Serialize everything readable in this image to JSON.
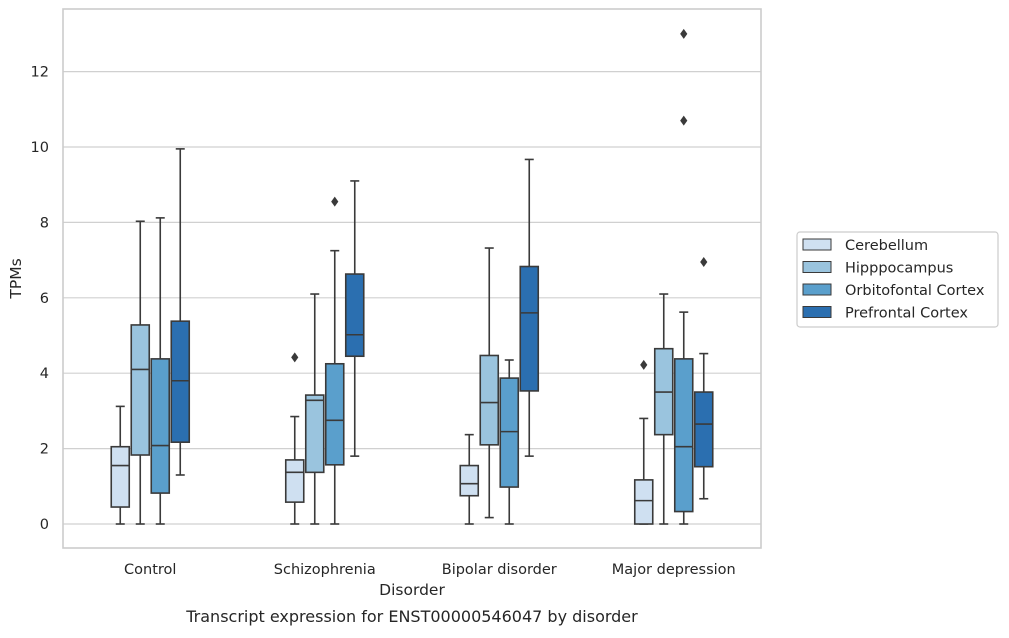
{
  "chart_data": {
    "type": "boxplot",
    "xlabel": "Disorder",
    "ylabel": "TPMs",
    "caption": "Transcript expression for ENST00000546047 by disorder",
    "ylim": [
      -0.6,
      13.6
    ],
    "yticks": [
      0,
      2,
      4,
      6,
      8,
      10,
      12
    ],
    "grid": "horizontal",
    "legend_position": "right",
    "categories": [
      "Control",
      "Schizophrenia",
      "Bipolar disorder",
      "Major depression"
    ],
    "series": [
      {
        "name": "Cerebellum",
        "color": "#cfe0f1",
        "boxes": [
          {
            "min": 0,
            "q1": 0.45,
            "median": 1.55,
            "q3": 2.05,
            "max": 3.12,
            "outliers": []
          },
          {
            "min": 0,
            "q1": 0.58,
            "median": 1.37,
            "q3": 1.7,
            "max": 2.85,
            "outliers": [
              4.42
            ]
          },
          {
            "min": 0,
            "q1": 0.75,
            "median": 1.07,
            "q3": 1.55,
            "max": 2.37,
            "outliers": []
          },
          {
            "min": 0,
            "q1": 0,
            "median": 0.62,
            "q3": 1.17,
            "max": 2.8,
            "outliers": [
              4.22
            ]
          }
        ]
      },
      {
        "name": "Hipppocampus",
        "color": "#9ac4de",
        "boxes": [
          {
            "min": 0,
            "q1": 1.83,
            "median": 4.1,
            "q3": 5.28,
            "max": 8.03,
            "outliers": []
          },
          {
            "min": 0,
            "q1": 1.37,
            "median": 3.28,
            "q3": 3.42,
            "max": 6.1,
            "outliers": []
          },
          {
            "min": 0.17,
            "q1": 2.1,
            "median": 3.22,
            "q3": 4.47,
            "max": 7.32,
            "outliers": []
          },
          {
            "min": 0,
            "q1": 2.37,
            "median": 3.5,
            "q3": 4.65,
            "max": 6.1,
            "outliers": []
          }
        ]
      },
      {
        "name": "Orbitofontal Cortex",
        "color": "#5a9fcc",
        "boxes": [
          {
            "min": 0,
            "q1": 0.82,
            "median": 2.08,
            "q3": 4.38,
            "max": 8.12,
            "outliers": []
          },
          {
            "min": 0,
            "q1": 1.57,
            "median": 2.75,
            "q3": 4.25,
            "max": 7.25,
            "outliers": [
              8.55
            ]
          },
          {
            "min": 0,
            "q1": 0.98,
            "median": 2.45,
            "q3": 3.87,
            "max": 4.35,
            "outliers": []
          },
          {
            "min": 0,
            "q1": 0.33,
            "median": 2.05,
            "q3": 4.38,
            "max": 5.62,
            "outliers": [
              10.7,
              13.0
            ]
          }
        ]
      },
      {
        "name": "Prefrontal Cortex",
        "color": "#2b6fb0",
        "boxes": [
          {
            "min": 1.3,
            "q1": 2.17,
            "median": 3.8,
            "q3": 5.38,
            "max": 9.95,
            "outliers": []
          },
          {
            "min": 1.8,
            "q1": 4.45,
            "median": 5.02,
            "q3": 6.63,
            "max": 9.1,
            "outliers": []
          },
          {
            "min": 1.8,
            "q1": 3.53,
            "median": 5.6,
            "q3": 6.83,
            "max": 9.67,
            "outliers": []
          },
          {
            "min": 0.67,
            "q1": 1.52,
            "median": 2.65,
            "q3": 3.5,
            "max": 4.52,
            "outliers": [
              6.95
            ]
          }
        ]
      }
    ]
  }
}
